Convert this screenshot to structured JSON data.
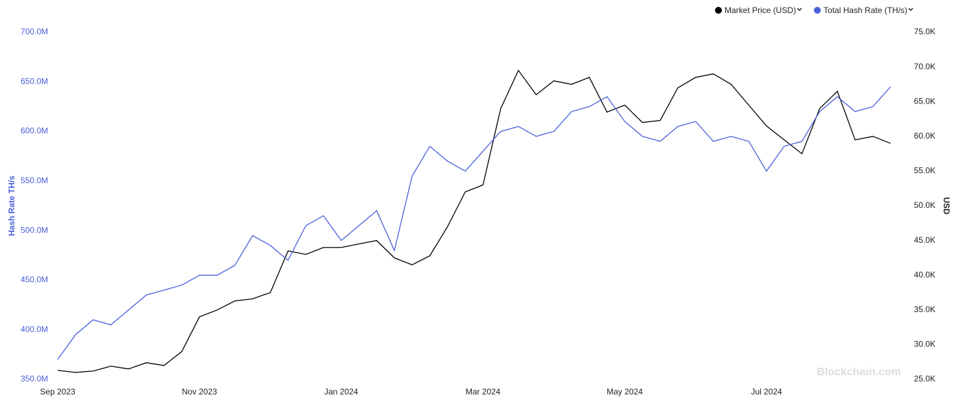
{
  "chart_data": {
    "type": "line",
    "legend": "top-right",
    "watermark": "Blockchain.com",
    "y_label": "Hash Rate TH/s",
    "y2_label": "USD",
    "categories": [
      "Sep 2023",
      null,
      null,
      null,
      null,
      null,
      null,
      null,
      "Nov 2023",
      null,
      null,
      null,
      null,
      null,
      null,
      null,
      "Jan 2024",
      null,
      null,
      null,
      null,
      null,
      null,
      null,
      "Mar 2024",
      null,
      null,
      null,
      null,
      null,
      null,
      null,
      "May 2024",
      null,
      null,
      null,
      null,
      null,
      null,
      null,
      "Jul 2024",
      null,
      null,
      null,
      null,
      null,
      null,
      null
    ],
    "ylim": [
      350000000,
      700000000
    ],
    "yticks": [
      {
        "value": 350000000,
        "label": "350.0M"
      },
      {
        "value": 400000000,
        "label": "400.0M"
      },
      {
        "value": 450000000,
        "label": "450.0M"
      },
      {
        "value": 500000000,
        "label": "500.0M"
      },
      {
        "value": 550000000,
        "label": "550.0M"
      },
      {
        "value": 600000000,
        "label": "600.0M"
      },
      {
        "value": 650000000,
        "label": "650.0M"
      },
      {
        "value": 700000000,
        "label": "700.0M"
      }
    ],
    "y2lim": [
      25000,
      75000
    ],
    "y2ticks": [
      {
        "value": 25000,
        "label": "25.0K"
      },
      {
        "value": 30000,
        "label": "30.0K"
      },
      {
        "value": 35000,
        "label": "35.0K"
      },
      {
        "value": 40000,
        "label": "40.0K"
      },
      {
        "value": 45000,
        "label": "45.0K"
      },
      {
        "value": 50000,
        "label": "50.0K"
      },
      {
        "value": 55000,
        "label": "55.0K"
      },
      {
        "value": 60000,
        "label": "60.0K"
      },
      {
        "value": 65000,
        "label": "65.0K"
      },
      {
        "value": 70000,
        "label": "70.0K"
      },
      {
        "value": 75000,
        "label": "75.0K"
      }
    ],
    "series": [
      {
        "name": "Market Price (USD)",
        "color": "#000000",
        "axis": "y2",
        "values": [
          26300,
          26000,
          26200,
          26900,
          26500,
          27400,
          27000,
          29000,
          34000,
          35000,
          36300,
          36600,
          37500,
          43500,
          43000,
          44000,
          44000,
          44500,
          45000,
          42500,
          41500,
          42800,
          47000,
          52000,
          53000,
          64000,
          69500,
          66000,
          68000,
          67500,
          68500,
          63500,
          64500,
          62000,
          62300,
          67000,
          68500,
          69000,
          67500,
          64500,
          61500,
          59500,
          57500,
          64000,
          66500,
          59500,
          60000,
          59000
        ]
      },
      {
        "name": "Total Hash Rate (TH/s)",
        "color": "#4a5fdb",
        "values": [
          370000000,
          395000000,
          410000000,
          405000000,
          420000000,
          435000000,
          440000000,
          445000000,
          455000000,
          455000000,
          465000000,
          495000000,
          485000000,
          470000000,
          505000000,
          515000000,
          490000000,
          505000000,
          520000000,
          480000000,
          555000000,
          585000000,
          570000000,
          560000000,
          580000000,
          600000000,
          605000000,
          595000000,
          600000000,
          620000000,
          625000000,
          635000000,
          610000000,
          595000000,
          590000000,
          605000000,
          610000000,
          590000000,
          595000000,
          590000000,
          560000000,
          585000000,
          590000000,
          620000000,
          635000000,
          620000000,
          625000000,
          645000000
        ]
      }
    ]
  }
}
